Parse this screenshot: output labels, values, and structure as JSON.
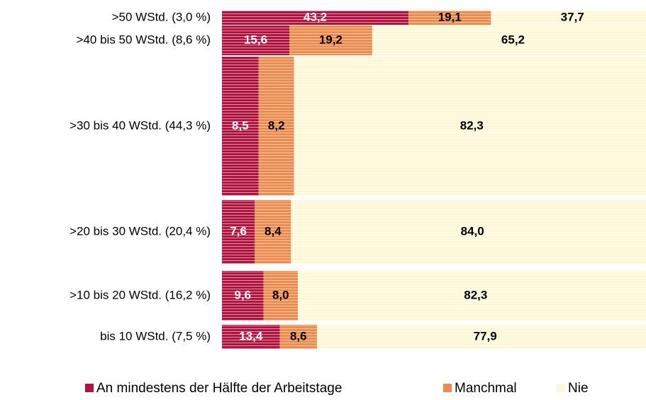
{
  "chart_data": {
    "type": "stacked_barh",
    "categories": [
      ">50 WStd. (3,0 %)",
      ">40 bis 50 WStd. (8,6 %)",
      ">30 bis 40 WStd. (44,3 %)",
      ">20 bis 30 WStd. (20,4 %)",
      ">10 bis 20 WStd. (16,2 %)",
      "bis 10 WStd. (7,5 %)"
    ],
    "series": [
      {
        "name": "An mindestens der Hälfte der Arbeitstage",
        "color": "#b0133f",
        "values": [
          43.2,
          15.6,
          8.5,
          7.6,
          9.6,
          13.4
        ],
        "value_labels": [
          "43,2",
          "15,6",
          "8,5",
          "7,6",
          "9,6",
          "13,4"
        ]
      },
      {
        "name": "Manchmal",
        "color": "#f08a4b",
        "values": [
          19.1,
          19.2,
          8.2,
          8.4,
          8.0,
          8.6
        ],
        "value_labels": [
          "19,1",
          "19,2",
          "8,2",
          "8,4",
          "8,0",
          "8,6"
        ]
      },
      {
        "name": "Nie",
        "color": "#fdf8d8",
        "values": [
          37.7,
          65.2,
          82.3,
          84.0,
          82.3,
          77.9
        ],
        "value_labels": [
          "37,7",
          "65,2",
          "82,3",
          "84,0",
          "82,3",
          "77,9"
        ]
      }
    ],
    "xlim": [
      0,
      100
    ],
    "legend": "bottom"
  }
}
